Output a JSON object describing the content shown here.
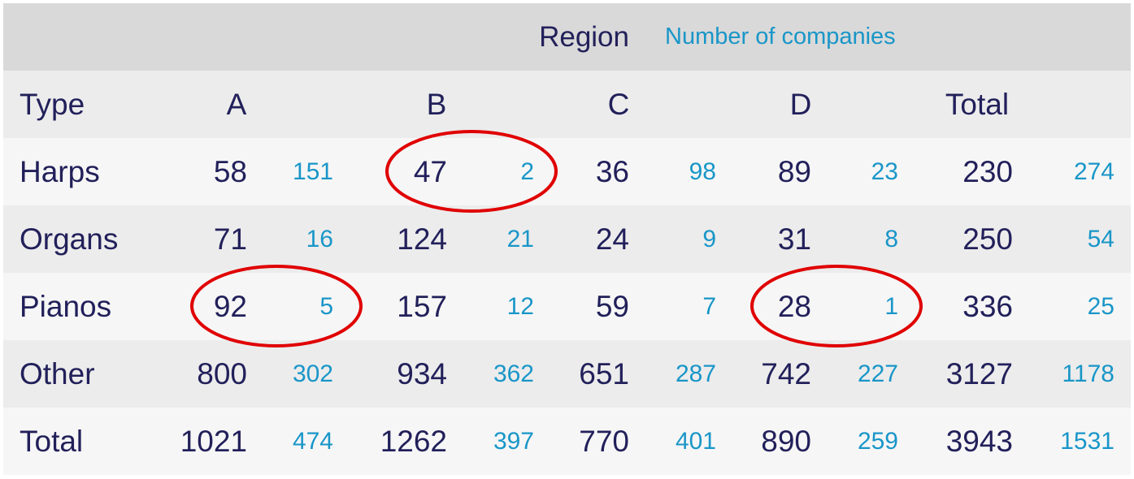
{
  "chart_data": {
    "type": "table",
    "title_primary": "Region",
    "title_secondary": "Number of companies",
    "row_header": "Type",
    "columns": [
      "A",
      "B",
      "C",
      "D",
      "Total"
    ],
    "rows": [
      {
        "type": "Harps",
        "values": [
          58,
          47,
          36,
          89,
          230
        ],
        "companies": [
          151,
          2,
          98,
          23,
          274
        ]
      },
      {
        "type": "Organs",
        "values": [
          71,
          124,
          24,
          31,
          250
        ],
        "companies": [
          16,
          21,
          9,
          8,
          54
        ]
      },
      {
        "type": "Pianos",
        "values": [
          92,
          157,
          59,
          28,
          336
        ],
        "companies": [
          5,
          12,
          7,
          1,
          25
        ]
      },
      {
        "type": "Other",
        "values": [
          800,
          934,
          651,
          742,
          3127
        ],
        "companies": [
          302,
          362,
          287,
          227,
          1178
        ]
      },
      {
        "type": "Total",
        "values": [
          1021,
          1262,
          770,
          890,
          3943
        ],
        "companies": [
          474,
          397,
          401,
          259,
          1531
        ]
      }
    ],
    "highlighted": [
      {
        "row": "Harps",
        "column": "B"
      },
      {
        "row": "Pianos",
        "column": "A"
      },
      {
        "row": "Pianos",
        "column": "D"
      }
    ],
    "highlight_color": "#e00000"
  }
}
